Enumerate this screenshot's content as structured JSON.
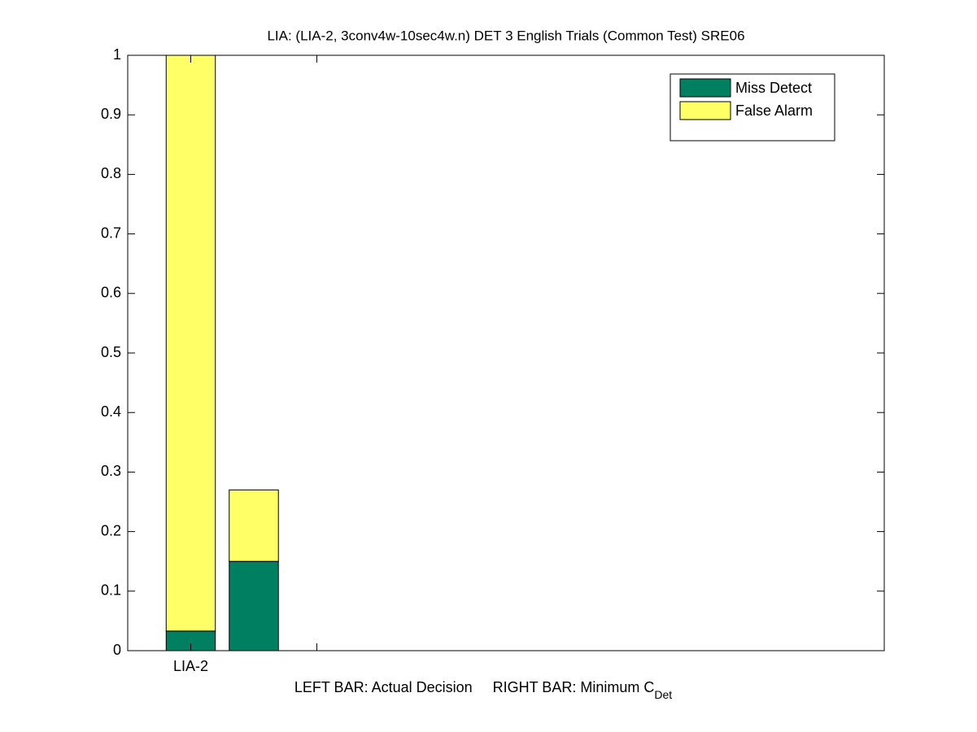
{
  "chart_data": {
    "type": "stacked_bar",
    "title": "LIA: (LIA-2, 3conv4w-10sec4w.n) DET 3 English Trials (Common Test) SRE06",
    "xlabel": "LEFT BAR: Actual Decision     RIGHT BAR: Minimum C",
    "xlabel_subscript": "Det",
    "x": [
      1,
      2
    ],
    "series": [
      {
        "name": "Miss Detect",
        "color": "#008060",
        "values": [
          0.033,
          0.15
        ]
      },
      {
        "name": "False Alarm",
        "color": "#ffff66",
        "values": [
          0.967,
          0.12
        ]
      }
    ],
    "xlim": [
      0,
      12
    ],
    "xticks": [
      {
        "value": 1,
        "label": "LIA-2"
      },
      {
        "value": 3,
        "label": null
      }
    ],
    "ylim": [
      0,
      1
    ],
    "yticks": [
      0,
      0.1,
      0.2,
      0.3,
      0.4,
      0.5,
      0.6,
      0.7,
      0.8,
      0.9,
      1
    ],
    "legend": "northeast",
    "grid": false
  }
}
